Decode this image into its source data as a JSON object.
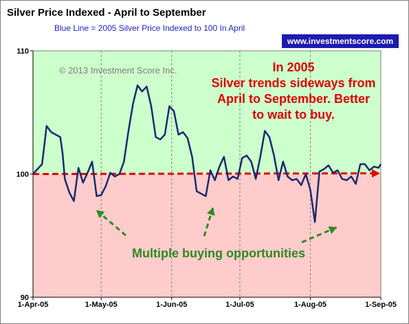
{
  "chart_data": {
    "type": "line",
    "title": "Silver Price Indexed - April to September",
    "subtitle": "Blue Line =  2005 Silver Price Indexed to 100 In April",
    "watermark": "www.investmentscore.com",
    "copyright": "© 2013 Investment Score Inc.",
    "ylim": [
      90,
      110
    ],
    "y_ticks": [
      90,
      100,
      110
    ],
    "x_tick_labels": [
      "1-Apr-05",
      "1-May-05",
      "1-Jun-05",
      "1-Jul-05",
      "1-Aug-05",
      "1-Sep-05"
    ],
    "x_range_days": [
      0,
      153
    ],
    "grid": "vertical dashed at month starts",
    "colors": {
      "line": "#1a2a6c",
      "upper_band": "#ccffcc",
      "lower_band": "#ffcccc",
      "baseline": "#e00000",
      "arrows": "#2e8b20",
      "site_badge": "#1c1cb0"
    },
    "series": [
      {
        "x_days": [
          0,
          4,
          6,
          8,
          10,
          12,
          13,
          14,
          16,
          18,
          20,
          22,
          24,
          26,
          28,
          30,
          32,
          34,
          36,
          38,
          40,
          42,
          44,
          46,
          48,
          50,
          52,
          54,
          56,
          58,
          60,
          62,
          64,
          66,
          68,
          70,
          72,
          74,
          76,
          78,
          80,
          82,
          84,
          86,
          88,
          90,
          92,
          94,
          96,
          98,
          100,
          102,
          104,
          106,
          108,
          110,
          112,
          114,
          116,
          118,
          120,
          122,
          124,
          126,
          128,
          130,
          132,
          134,
          136,
          138,
          140,
          142,
          144,
          146,
          148,
          150,
          152,
          153
        ],
        "values": [
          100.0,
          100.8,
          103.9,
          103.4,
          103.2,
          103.0,
          101.7,
          99.6,
          98.5,
          97.8,
          100.5,
          99.3,
          100.1,
          101.0,
          98.2,
          98.3,
          99.0,
          100.1,
          99.8,
          100.0,
          101.0,
          103.5,
          105.7,
          107.2,
          106.7,
          107.1,
          105.5,
          103.0,
          102.8,
          103.2,
          105.5,
          105.1,
          103.2,
          103.4,
          102.9,
          101.4,
          98.6,
          98.4,
          98.2,
          100.3,
          99.5,
          100.6,
          101.4,
          99.5,
          99.8,
          99.6,
          101.3,
          101.5,
          101.0,
          99.6,
          101.4,
          103.5,
          103.0,
          101.5,
          99.5,
          101.0,
          99.8,
          99.5,
          99.6,
          99.1,
          100.0,
          98.7,
          96.1,
          100.2,
          100.4,
          100.7,
          100.1,
          100.3,
          99.6,
          99.5,
          99.8,
          99.2,
          100.8,
          100.8,
          100.3,
          100.6,
          100.5,
          100.8
        ]
      }
    ],
    "baseline_value": 100,
    "annotations": {
      "red_text": [
        "In 2005",
        "Silver trends sideways from",
        "April to September.  Better",
        "to wait to buy."
      ],
      "green_text": "Multiple buying opportunities"
    }
  }
}
